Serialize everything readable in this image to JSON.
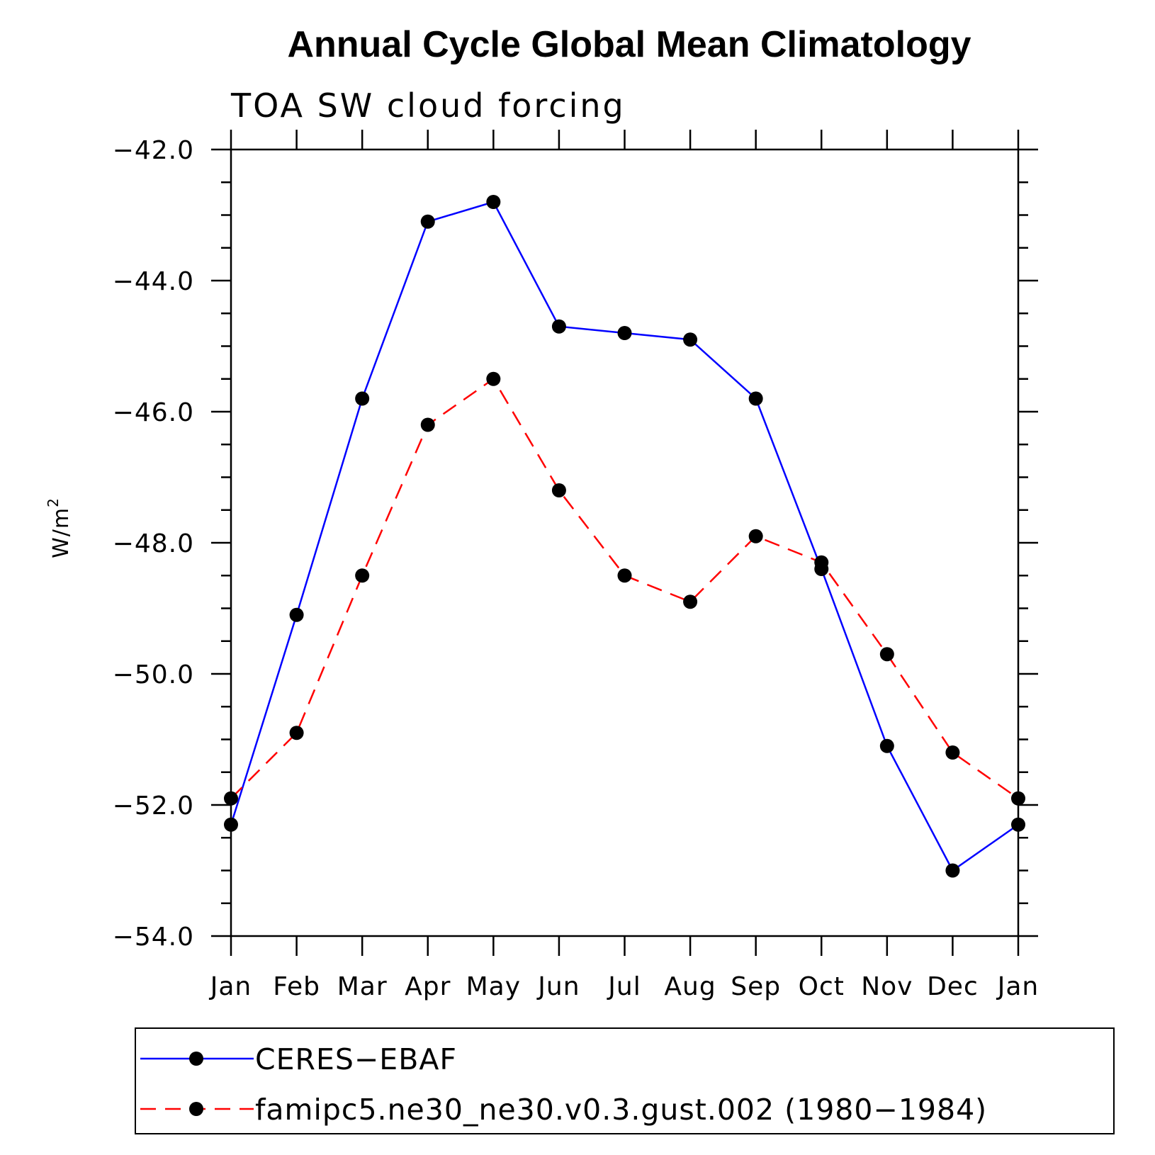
{
  "chart_data": {
    "type": "line",
    "title": "Annual Cycle Global Mean Climatology",
    "subtitle": "TOA SW cloud forcing",
    "ylabel": "W/m",
    "ylabel_superscript": "2",
    "xlabel": "",
    "categories": [
      "Jan",
      "Feb",
      "Mar",
      "Apr",
      "May",
      "Jun",
      "Jul",
      "Aug",
      "Sep",
      "Oct",
      "Nov",
      "Dec",
      "Jan"
    ],
    "ylim": [
      -54.0,
      -42.0
    ],
    "yticks": [
      -42.0,
      -44.0,
      -46.0,
      -48.0,
      -50.0,
      -52.0,
      -54.0
    ],
    "ytick_labels": [
      "−42.0",
      "−44.0",
      "−46.0",
      "−48.0",
      "−50.0",
      "−52.0",
      "−54.0"
    ],
    "grid": false,
    "legend_placement": "bottom",
    "series": [
      {
        "name": "CERES−EBAF",
        "color": "#0000ff",
        "line_style": "solid",
        "marker": "filled-circle",
        "values": [
          -52.3,
          -49.1,
          -45.8,
          -43.1,
          -42.8,
          -44.7,
          -44.8,
          -44.9,
          -45.8,
          -48.4,
          -51.1,
          -53.0,
          -52.3
        ]
      },
      {
        "name": "famipc5.ne30_ne30.v0.3.gust.002 (1980−1984)",
        "color": "#ff0000",
        "line_style": "dashed",
        "marker": "filled-circle",
        "values": [
          -51.9,
          -50.9,
          -48.5,
          -46.2,
          -45.5,
          -47.2,
          -48.5,
          -48.9,
          -47.9,
          -48.3,
          -49.7,
          -51.2,
          -51.9
        ]
      }
    ]
  }
}
